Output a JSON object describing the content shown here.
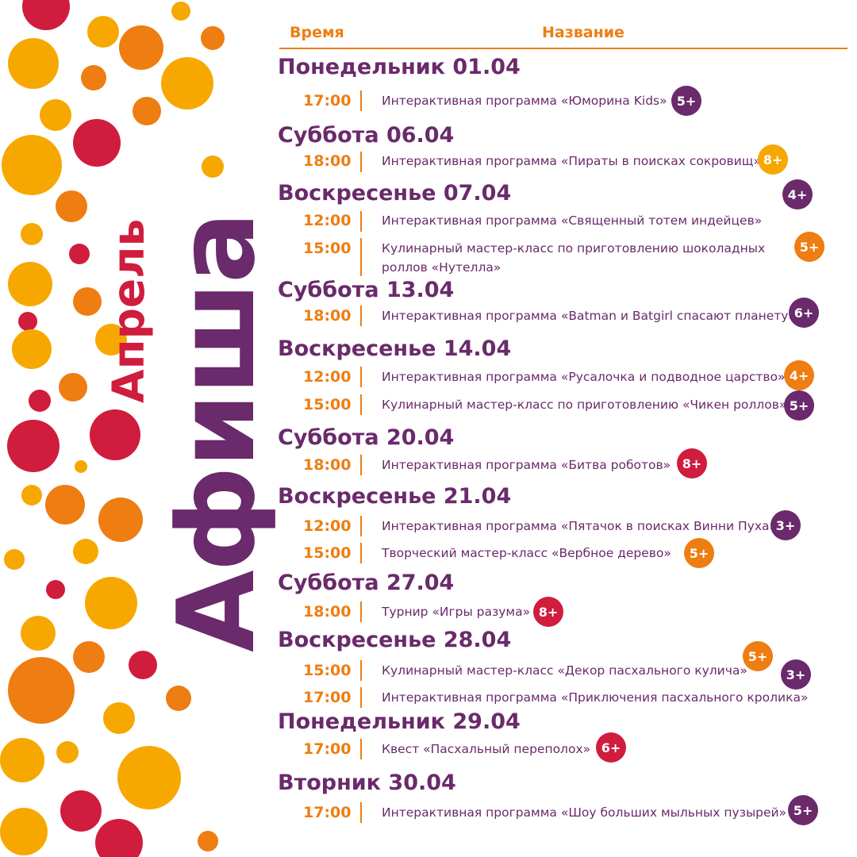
{
  "header": {
    "time_label": "Время",
    "name_label": "Название"
  },
  "title": {
    "month": "Апрель",
    "main": "Афиша"
  },
  "colors": {
    "purple": "#6a2a6b",
    "orange": "#ee7d12",
    "yellow": "#f7a800",
    "red": "#d01c3d"
  },
  "days": [
    {
      "title": "Понедельник 01.04",
      "events": [
        {
          "time": "17:00",
          "name": "Интерактивная программа «Юморина Kids»",
          "age": "5+",
          "age_color": "purple"
        }
      ]
    },
    {
      "title": "Суббота 06.04",
      "events": [
        {
          "time": "18:00",
          "name": "Интерактивная программа «Пираты в поисках сокровищ»",
          "age": "8+",
          "age_color": "yellow"
        }
      ]
    },
    {
      "title": "Воскресенье 07.04",
      "age": "4+",
      "age_color": "purple",
      "events": [
        {
          "time": "12:00",
          "name": "Интерактивная программа «Священный тотем индейцев»"
        },
        {
          "time": "15:00",
          "name": "Кулинарный мастер-класс по приготовлению шоколадных",
          "name_line2": "роллов «Нутелла»",
          "age": "5+",
          "age_color": "orange"
        }
      ]
    },
    {
      "title": "Суббота 13.04",
      "events": [
        {
          "time": "18:00",
          "name": "Интерактивная программа «Batman и Batgirl спасают планету»",
          "age": "6+",
          "age_color": "purple"
        }
      ]
    },
    {
      "title": "Воскресенье 14.04",
      "events": [
        {
          "time": "12:00",
          "name": "Интерактивная программа «Русалочка и подводное царство»",
          "age": "4+",
          "age_color": "orange"
        },
        {
          "time": "15:00",
          "name": "Кулинарный мастер-класс по приготовлению «Чикен роллов»",
          "age": "5+",
          "age_color": "purple"
        }
      ]
    },
    {
      "title": "Суббота 20.04",
      "events": [
        {
          "time": "18:00",
          "name": "Интерактивная программа «Битва роботов»",
          "age": "8+",
          "age_color": "red"
        }
      ]
    },
    {
      "title": "Воскресенье 21.04",
      "events": [
        {
          "time": "12:00",
          "name": "Интерактивная программа «Пятачок в поисках Винни Пуха»",
          "age": "3+",
          "age_color": "purple"
        },
        {
          "time": "15:00",
          "name": "Творческий мастер-класс «Вербное дерево»",
          "age": "5+",
          "age_color": "orange"
        }
      ]
    },
    {
      "title": "Суббота 27.04",
      "events": [
        {
          "time": "18:00",
          "name": "Турнир «Игры разума»",
          "age": "8+",
          "age_color": "red"
        }
      ]
    },
    {
      "title": "Воскресенье 28.04",
      "events": [
        {
          "time": "15:00",
          "name": "Кулинарный мастер-класс «Декор пасхального кулича»",
          "age": "5+",
          "age_color": "orange"
        },
        {
          "time": "17:00",
          "name": "Интерактивная программа «Приключения пасхального кролика»",
          "age": "3+",
          "age_color": "purple"
        }
      ]
    },
    {
      "title": "Понедельник 29.04",
      "events": [
        {
          "time": "17:00",
          "name": "Квест «Пасхальный переполох»",
          "age": "6+",
          "age_color": "red"
        }
      ]
    },
    {
      "title": "Вторник 30.04",
      "events": [
        {
          "time": "17:00",
          "name": "Интерактивная программа «Шоу больших мыльных пузырей»",
          "age": "5+",
          "age_color": "purple"
        }
      ]
    }
  ]
}
